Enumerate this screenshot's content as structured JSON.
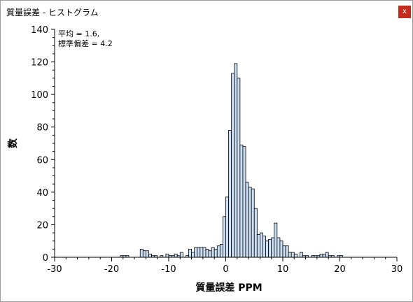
{
  "window": {
    "title": "質量誤差 - ヒストグラム",
    "close_label": "x"
  },
  "chart_data": {
    "type": "bar",
    "xlabel": "質量誤差 PPM",
    "ylabel": "数",
    "xlim": [
      -30,
      30
    ],
    "ylim": [
      0,
      140
    ],
    "x_ticks": [
      -30,
      -20,
      -10,
      0,
      10,
      20,
      30
    ],
    "y_ticks": [
      0,
      20,
      40,
      60,
      80,
      100,
      120,
      140
    ],
    "bin_width": 0.5,
    "annotation_lines": [
      "平均 = 1.6,",
      "標準偏差 = 4.2"
    ],
    "bar_color": "#cce0f5",
    "grid": false,
    "bins": [
      {
        "x": -18.5,
        "count": 1
      },
      {
        "x": -18.0,
        "count": 1
      },
      {
        "x": -17.5,
        "count": 1
      },
      {
        "x": -15.0,
        "count": 5
      },
      {
        "x": -14.5,
        "count": 4
      },
      {
        "x": -14.0,
        "count": 4
      },
      {
        "x": -13.5,
        "count": 2
      },
      {
        "x": -13.0,
        "count": 1
      },
      {
        "x": -12.5,
        "count": 1
      },
      {
        "x": -11.5,
        "count": 1
      },
      {
        "x": -10.5,
        "count": 2
      },
      {
        "x": -10.0,
        "count": 1
      },
      {
        "x": -9.5,
        "count": 1
      },
      {
        "x": -9.0,
        "count": 2
      },
      {
        "x": -8.5,
        "count": 1
      },
      {
        "x": -8.0,
        "count": 3
      },
      {
        "x": -7.0,
        "count": 1
      },
      {
        "x": -6.5,
        "count": 5
      },
      {
        "x": -6.0,
        "count": 3
      },
      {
        "x": -5.5,
        "count": 6
      },
      {
        "x": -5.0,
        "count": 6
      },
      {
        "x": -4.5,
        "count": 6
      },
      {
        "x": -4.0,
        "count": 6
      },
      {
        "x": -3.5,
        "count": 5
      },
      {
        "x": -3.0,
        "count": 4
      },
      {
        "x": -2.5,
        "count": 6
      },
      {
        "x": -2.0,
        "count": 5
      },
      {
        "x": -1.5,
        "count": 7
      },
      {
        "x": -1.0,
        "count": 8
      },
      {
        "x": -0.5,
        "count": 25
      },
      {
        "x": 0.0,
        "count": 37
      },
      {
        "x": 0.5,
        "count": 78
      },
      {
        "x": 1.0,
        "count": 113
      },
      {
        "x": 1.5,
        "count": 119
      },
      {
        "x": 2.0,
        "count": 110
      },
      {
        "x": 2.5,
        "count": 69
      },
      {
        "x": 3.0,
        "count": 68
      },
      {
        "x": 3.5,
        "count": 46
      },
      {
        "x": 4.0,
        "count": 43
      },
      {
        "x": 4.5,
        "count": 42
      },
      {
        "x": 5.0,
        "count": 30
      },
      {
        "x": 5.5,
        "count": 14
      },
      {
        "x": 6.0,
        "count": 15
      },
      {
        "x": 6.5,
        "count": 13
      },
      {
        "x": 7.0,
        "count": 10
      },
      {
        "x": 7.5,
        "count": 11
      },
      {
        "x": 8.0,
        "count": 12
      },
      {
        "x": 8.5,
        "count": 21
      },
      {
        "x": 9.0,
        "count": 12
      },
      {
        "x": 9.5,
        "count": 10
      },
      {
        "x": 10.0,
        "count": 7
      },
      {
        "x": 10.5,
        "count": 7
      },
      {
        "x": 11.0,
        "count": 3
      },
      {
        "x": 11.5,
        "count": 3
      },
      {
        "x": 12.0,
        "count": 2
      },
      {
        "x": 13.0,
        "count": 3
      },
      {
        "x": 13.5,
        "count": 1
      },
      {
        "x": 14.0,
        "count": 1
      },
      {
        "x": 15.0,
        "count": 1
      },
      {
        "x": 15.5,
        "count": 1
      },
      {
        "x": 16.0,
        "count": 1
      },
      {
        "x": 16.5,
        "count": 2
      },
      {
        "x": 17.0,
        "count": 2
      },
      {
        "x": 17.5,
        "count": 3
      },
      {
        "x": 18.0,
        "count": 1
      },
      {
        "x": 18.5,
        "count": 1
      },
      {
        "x": 19.5,
        "count": 1
      },
      {
        "x": 20.0,
        "count": 1
      }
    ]
  }
}
